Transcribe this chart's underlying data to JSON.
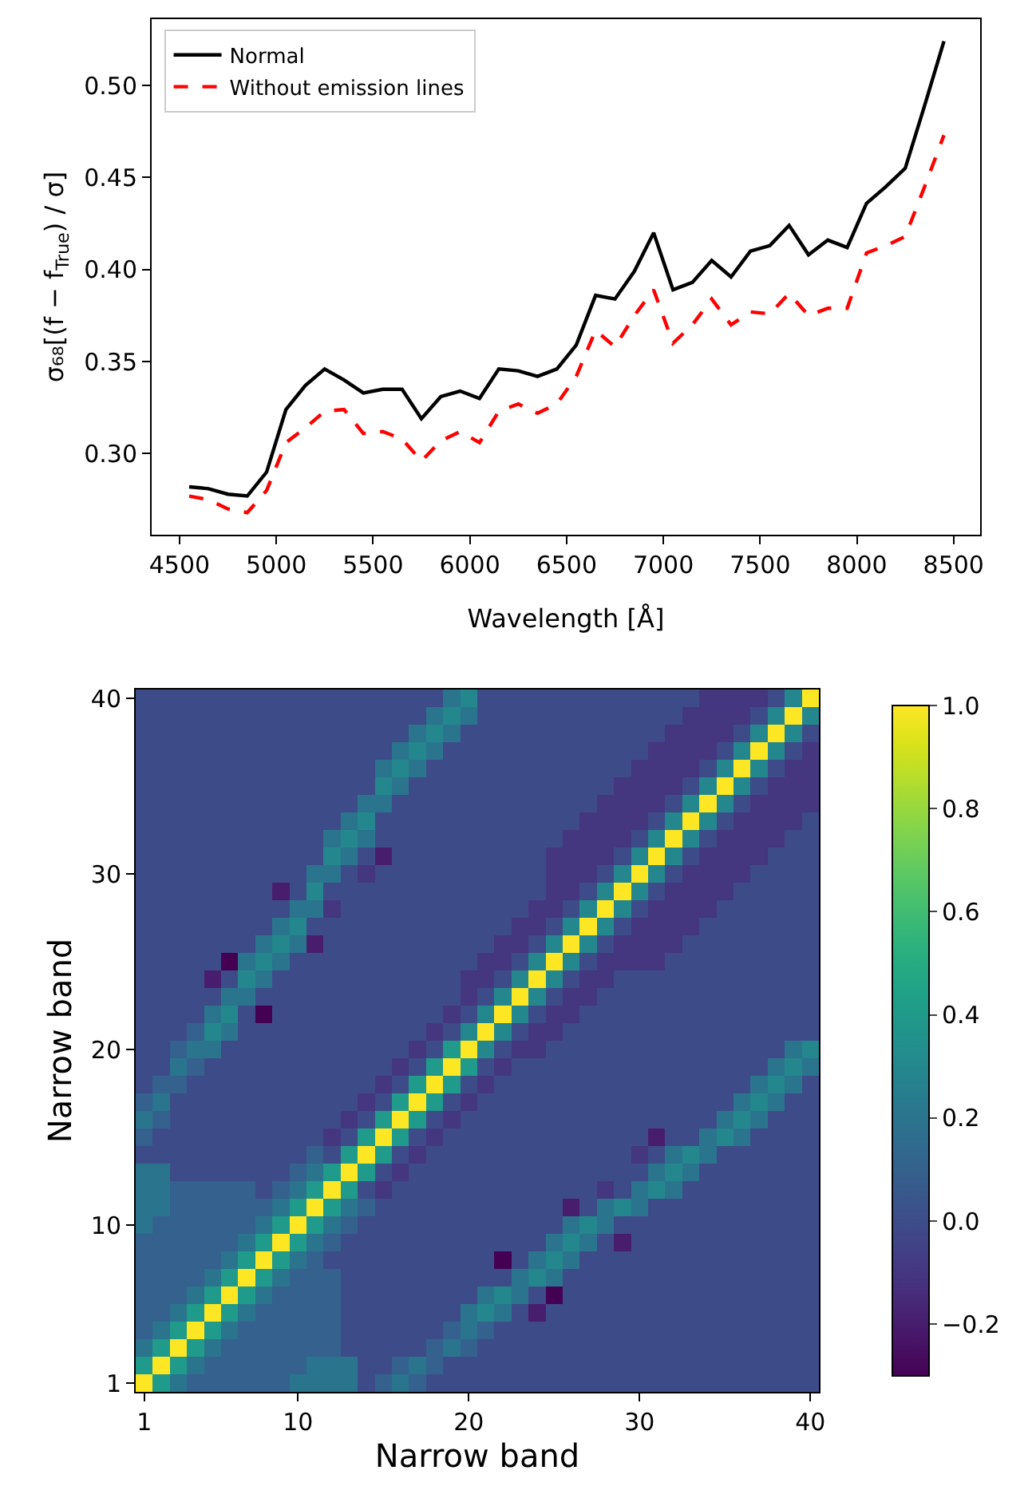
{
  "chart_data": [
    {
      "type": "line",
      "xlabel": "Wavelength [Å]",
      "ylabel": "σ₆₈[(f − f$_{True}$) / σ]",
      "x": [
        4550,
        4650,
        4750,
        4850,
        4950,
        5050,
        5150,
        5250,
        5350,
        5450,
        5550,
        5650,
        5750,
        5850,
        5950,
        6050,
        6150,
        6250,
        6350,
        6450,
        6550,
        6650,
        6750,
        6850,
        6950,
        7050,
        7150,
        7250,
        7350,
        7450,
        7550,
        7650,
        7750,
        7850,
        7950,
        8050,
        8150,
        8250,
        8350,
        8450
      ],
      "series": [
        {
          "name": "Normal",
          "color": "#000000",
          "line_style": "solid",
          "values": [
            0.282,
            0.281,
            0.278,
            0.277,
            0.29,
            0.324,
            0.337,
            0.346,
            0.34,
            0.333,
            0.335,
            0.335,
            0.319,
            0.331,
            0.334,
            0.33,
            0.346,
            0.345,
            0.342,
            0.346,
            0.359,
            0.386,
            0.384,
            0.399,
            0.42,
            0.389,
            0.393,
            0.405,
            0.396,
            0.41,
            0.413,
            0.424,
            0.408,
            0.416,
            0.412,
            0.436,
            0.445,
            0.455,
            0.489,
            0.524
          ]
        },
        {
          "name": "Without emission lines",
          "color": "#ff0000",
          "line_style": "dashed",
          "values": [
            0.277,
            0.275,
            0.27,
            0.268,
            0.28,
            0.306,
            0.314,
            0.323,
            0.324,
            0.311,
            0.312,
            0.308,
            0.296,
            0.307,
            0.312,
            0.306,
            0.323,
            0.327,
            0.322,
            0.327,
            0.342,
            0.367,
            0.358,
            0.375,
            0.389,
            0.36,
            0.37,
            0.384,
            0.37,
            0.377,
            0.376,
            0.387,
            0.375,
            0.379,
            0.379,
            0.409,
            0.413,
            0.418,
            0.445,
            0.473
          ]
        }
      ],
      "xlim": [
        4356,
        8637
      ],
      "xticks": [
        4500,
        5000,
        5500,
        6000,
        6500,
        7000,
        7500,
        8000,
        8500
      ],
      "ylim": [
        0.256,
        0.536
      ],
      "yticks": [
        {
          "value": 0.3,
          "label": "0.30"
        },
        {
          "value": 0.35,
          "label": "0.35"
        },
        {
          "value": 0.4,
          "label": "0.40"
        },
        {
          "value": 0.45,
          "label": "0.45"
        },
        {
          "value": 0.5,
          "label": "0.50"
        }
      ],
      "legend": "top left"
    },
    {
      "type": "heatmap",
      "xlabel": "Narrow band",
      "ylabel": "Narrow band",
      "categories": [
        "1",
        null,
        null,
        null,
        null,
        null,
        null,
        null,
        null,
        "10",
        null,
        null,
        null,
        null,
        null,
        null,
        null,
        null,
        null,
        "20",
        null,
        null,
        null,
        null,
        null,
        null,
        null,
        null,
        null,
        "30",
        null,
        null,
        null,
        null,
        null,
        null,
        null,
        null,
        null,
        "40"
      ],
      "y_categories": [
        "40",
        null,
        null,
        null,
        null,
        null,
        null,
        null,
        null,
        null,
        "30",
        null,
        null,
        null,
        null,
        null,
        null,
        null,
        null,
        null,
        "20",
        null,
        null,
        null,
        null,
        null,
        null,
        null,
        null,
        null,
        "10",
        null,
        null,
        null,
        null,
        null,
        null,
        null,
        null,
        "1"
      ],
      "clim": [
        -0.3,
        1.0
      ],
      "cticks": [
        {
          "value": -0.2,
          "label": "−0.2"
        },
        {
          "value": 0,
          "label": "0.0"
        },
        {
          "value": 0.2,
          "label": "0.2"
        },
        {
          "value": 0.4,
          "label": "0.4"
        },
        {
          "value": 0.6,
          "label": "0.6"
        },
        {
          "value": 0.8,
          "label": "0.8"
        },
        {
          "value": 1.0,
          "label": "1.0"
        }
      ],
      "cells": [
        [
          0,
          0,
          0,
          0,
          0,
          0,
          0,
          0,
          0,
          0,
          0,
          0,
          0,
          0,
          0,
          0,
          0,
          0,
          0.2,
          0.3,
          0,
          0,
          0,
          0,
          0,
          0,
          0,
          0,
          0,
          0,
          0,
          0,
          0,
          -0.1,
          -0.1,
          -0.1,
          -0.1,
          0,
          0.3,
          1
        ],
        [
          0,
          0,
          0,
          0,
          0,
          0,
          0,
          0,
          0,
          0,
          0,
          0,
          0,
          0,
          0,
          0,
          0,
          0.2,
          0.3,
          0.2,
          0,
          0,
          0,
          0,
          0,
          0,
          0,
          0,
          0,
          0,
          0,
          0,
          -0.1,
          -0.1,
          -0.1,
          -0.1,
          0,
          0.3,
          1,
          0.3
        ],
        [
          0,
          0,
          0,
          0,
          0,
          0,
          0,
          0,
          0,
          0,
          0,
          0,
          0,
          0,
          0,
          0,
          0.2,
          0.3,
          0.2,
          0,
          0,
          0,
          0,
          0,
          0,
          0,
          0,
          0,
          0,
          0,
          0,
          -0.1,
          -0.1,
          -0.1,
          -0.1,
          0,
          0.3,
          1,
          0.3,
          0
        ],
        [
          0,
          0,
          0,
          0,
          0,
          0,
          0,
          0,
          0,
          0,
          0,
          0,
          0,
          0,
          0,
          0.2,
          0.3,
          0.2,
          0,
          0,
          0,
          0,
          0,
          0,
          0,
          0,
          0,
          0,
          0,
          0,
          -0.1,
          -0.1,
          -0.1,
          -0.1,
          0,
          0.3,
          1,
          0.3,
          0,
          -0.1
        ],
        [
          0,
          0,
          0,
          0,
          0,
          0,
          0,
          0,
          0,
          0,
          0,
          0,
          0,
          0,
          0.2,
          0.3,
          0.2,
          0,
          0,
          0,
          0,
          0,
          0,
          0,
          0,
          0,
          0,
          0,
          0,
          -0.1,
          -0.1,
          -0.1,
          -0.1,
          0,
          0.3,
          1,
          0.3,
          0,
          -0.1,
          -0.1
        ],
        [
          0,
          0,
          0,
          0,
          0,
          0,
          0,
          0,
          0,
          0,
          0,
          0,
          0,
          0,
          0.3,
          0.2,
          0,
          0,
          0,
          0,
          0,
          0,
          0,
          0,
          0,
          0,
          0,
          0,
          -0.1,
          -0.1,
          -0.1,
          -0.1,
          0,
          0.3,
          1,
          0.3,
          0,
          -0.1,
          -0.1,
          -0.1
        ],
        [
          0,
          0,
          0,
          0,
          0,
          0,
          0,
          0,
          0,
          0,
          0,
          0,
          0,
          0.2,
          0.2,
          0,
          0,
          0,
          0,
          0,
          0,
          0,
          0,
          0,
          0,
          0,
          0,
          -0.1,
          -0.1,
          -0.1,
          -0.1,
          0,
          0.3,
          1,
          0.3,
          0,
          -0.1,
          -0.1,
          -0.1,
          -0.1
        ],
        [
          0,
          0,
          0,
          0,
          0,
          0,
          0,
          0,
          0,
          0,
          0,
          0,
          0.2,
          0.3,
          0,
          0,
          0,
          0,
          0,
          0,
          0,
          0,
          0,
          0,
          0,
          0,
          -0.1,
          -0.1,
          -0.1,
          -0.1,
          0,
          0.3,
          1,
          0.3,
          0,
          -0.1,
          -0.1,
          -0.1,
          -0.1,
          0
        ],
        [
          0,
          0,
          0,
          0,
          0,
          0,
          0,
          0,
          0,
          0,
          0,
          0.2,
          0.3,
          0.2,
          0,
          0,
          0,
          0,
          0,
          0,
          0,
          0,
          0,
          0,
          0,
          -0.1,
          -0.1,
          -0.1,
          -0.1,
          0,
          0.3,
          1,
          0.3,
          0,
          -0.1,
          -0.1,
          -0.1,
          -0.1,
          0,
          0
        ],
        [
          0,
          0,
          0,
          0,
          0,
          0,
          0,
          0,
          0,
          0,
          0,
          0.3,
          0.2,
          0,
          -0.2,
          0,
          0,
          0,
          0,
          0,
          0,
          0,
          0,
          0,
          -0.1,
          -0.1,
          -0.1,
          -0.1,
          0,
          0.3,
          1,
          0.3,
          0,
          -0.1,
          -0.1,
          -0.1,
          -0.1,
          0,
          0,
          0
        ],
        [
          0,
          0,
          0,
          0,
          0,
          0,
          0,
          0,
          0,
          0,
          0.2,
          0.2,
          0,
          -0.1,
          0,
          0,
          0,
          0,
          0,
          0,
          0,
          0,
          0,
          0,
          -0.1,
          -0.1,
          -0.1,
          0,
          0.3,
          1,
          0.3,
          0,
          -0.1,
          -0.1,
          -0.1,
          -0.1,
          0,
          0,
          0,
          0
        ],
        [
          0,
          0,
          0,
          0,
          0,
          0,
          0,
          0,
          -0.2,
          0,
          0.3,
          0,
          0,
          0,
          0,
          0,
          0,
          0,
          0,
          0,
          0,
          0,
          0,
          0,
          -0.1,
          -0.1,
          0,
          0.3,
          1,
          0.3,
          0,
          -0.1,
          -0.1,
          -0.1,
          -0.1,
          0,
          0,
          0,
          0,
          0
        ],
        [
          0,
          0,
          0,
          0,
          0,
          0,
          0,
          0,
          0,
          0.2,
          0.2,
          -0.1,
          0,
          0,
          0,
          0,
          0,
          0,
          0,
          0,
          0,
          0,
          0,
          -0.1,
          -0.1,
          0,
          0.3,
          1,
          0.3,
          0,
          -0.1,
          -0.1,
          -0.1,
          -0.1,
          0,
          0,
          0,
          0,
          0,
          0
        ],
        [
          0,
          0,
          0,
          0,
          0,
          0,
          0,
          0,
          0.2,
          0.3,
          0,
          0,
          0,
          0,
          0,
          0,
          0,
          0,
          0,
          0,
          0,
          0,
          -0.1,
          -0.1,
          0,
          0.3,
          1,
          0.3,
          0,
          -0.1,
          -0.1,
          -0.1,
          -0.1,
          0,
          0,
          0,
          0,
          0,
          0,
          0
        ],
        [
          0,
          0,
          0,
          0,
          0,
          0,
          0,
          0.2,
          0.3,
          0.2,
          -0.2,
          0,
          0,
          0,
          0,
          0,
          0,
          0,
          0,
          0,
          0,
          -0.1,
          -0.1,
          0,
          0.3,
          1,
          0.3,
          0,
          -0.1,
          -0.1,
          -0.1,
          -0.1,
          0,
          0,
          0,
          0,
          0,
          0,
          0,
          0
        ],
        [
          0,
          0,
          0,
          0,
          0,
          -0.3,
          0.2,
          0.3,
          0.2,
          0,
          0,
          0,
          0,
          0,
          0,
          0,
          0,
          0,
          0,
          0,
          -0.1,
          -0.1,
          0,
          0.3,
          1,
          0.3,
          0,
          -0.1,
          -0.1,
          -0.1,
          -0.1,
          0,
          0,
          0,
          0,
          0,
          0,
          0,
          0,
          0
        ],
        [
          0,
          0,
          0,
          0,
          -0.2,
          0,
          0.3,
          0.2,
          0,
          0,
          0,
          0,
          0,
          0,
          0,
          0,
          0,
          0,
          0,
          -0.1,
          -0.1,
          0,
          0.3,
          1,
          0.3,
          0,
          -0.1,
          -0.1,
          0,
          0,
          0,
          0,
          0,
          0,
          0,
          0,
          0,
          0,
          0,
          0
        ],
        [
          0,
          0,
          0,
          0,
          0,
          0.2,
          0.2,
          0,
          0,
          0,
          0,
          0,
          0,
          0,
          0,
          0,
          0,
          0,
          0,
          -0.1,
          0,
          0.3,
          1,
          0.3,
          0,
          -0.1,
          -0.1,
          0,
          0,
          0,
          0,
          0,
          0,
          0,
          0,
          0,
          0,
          0,
          0,
          0
        ],
        [
          0,
          0,
          0,
          0,
          0.2,
          0.3,
          0,
          -0.3,
          0,
          0,
          0,
          0,
          0,
          0,
          0,
          0,
          0,
          0,
          -0.1,
          0,
          0.3,
          1,
          0.3,
          0,
          -0.1,
          -0.1,
          0,
          0,
          0,
          0,
          0,
          0,
          0,
          0,
          0,
          0,
          0,
          0,
          0,
          0
        ],
        [
          0,
          0,
          0,
          0.1,
          0.3,
          0.2,
          0,
          0,
          0,
          0,
          0,
          0,
          0,
          0,
          0,
          0,
          0,
          -0.1,
          0,
          0.3,
          1,
          0.3,
          0,
          -0.1,
          -0.1,
          0,
          0,
          0,
          0,
          0,
          0,
          0,
          0,
          0,
          0,
          0,
          0,
          0,
          0,
          0
        ],
        [
          0,
          0,
          0.1,
          0.2,
          0.2,
          0,
          0,
          0,
          0,
          0,
          0,
          0,
          0,
          0,
          0,
          0,
          -0.1,
          0,
          0.4,
          1,
          0.3,
          0,
          -0.1,
          -0.1,
          0,
          0,
          0,
          0,
          0,
          0,
          0,
          0,
          0,
          0,
          0,
          0,
          0,
          0,
          0.2,
          0.3
        ],
        [
          0,
          0,
          0.2,
          0.1,
          0,
          0,
          0,
          0,
          0,
          0,
          0,
          0,
          0,
          0,
          0,
          -0.1,
          0,
          0.4,
          1,
          0.4,
          0,
          -0.1,
          0,
          0,
          0,
          0,
          0,
          0,
          0,
          0,
          0,
          0,
          0,
          0,
          0,
          0,
          0,
          0.2,
          0.3,
          0.2
        ],
        [
          0,
          0.1,
          0.1,
          0,
          0,
          0,
          0,
          0,
          0,
          0,
          0,
          0,
          0,
          0,
          -0.1,
          0,
          0.4,
          1,
          0.4,
          0,
          -0.1,
          0,
          0,
          0,
          0,
          0,
          0,
          0,
          0,
          0,
          0,
          0,
          0,
          0,
          0,
          0,
          0.2,
          0.3,
          0.2,
          0
        ],
        [
          0.1,
          0.2,
          0,
          0,
          0,
          0,
          0,
          0,
          0,
          0,
          0,
          0,
          0,
          -0.1,
          0,
          0.4,
          1,
          0.4,
          0,
          -0.1,
          0,
          0,
          0,
          0,
          0,
          0,
          0,
          0,
          0,
          0,
          0,
          0,
          0,
          0,
          0,
          0.2,
          0.3,
          0.2,
          0,
          0
        ],
        [
          0.2,
          0.1,
          0,
          0,
          0,
          0,
          0,
          0,
          0,
          0,
          0,
          0,
          -0.1,
          0,
          0.4,
          1,
          0.4,
          0,
          -0.1,
          0,
          0,
          0,
          0,
          0,
          0,
          0,
          0,
          0,
          0,
          0,
          0,
          0,
          0,
          0,
          0.2,
          0.3,
          0.2,
          0,
          0,
          0
        ],
        [
          0.1,
          0,
          0,
          0,
          0,
          0,
          0,
          0,
          0,
          0,
          0,
          -0.1,
          0,
          0.4,
          1,
          0.4,
          0,
          -0.1,
          0,
          0,
          0,
          0,
          0,
          0,
          0,
          0,
          0,
          0,
          0,
          0,
          -0.2,
          0,
          0,
          0.2,
          0.3,
          0.2,
          0,
          0,
          0,
          0
        ],
        [
          0,
          0,
          0,
          0,
          0,
          0,
          0,
          0,
          0,
          0,
          0.1,
          0,
          0.4,
          1,
          0.4,
          0,
          -0.1,
          0,
          0,
          0,
          0,
          0,
          0,
          0,
          0,
          0,
          0,
          0,
          0,
          -0.1,
          0,
          0.2,
          0.3,
          0.2,
          0,
          0,
          0,
          0,
          0,
          0
        ],
        [
          0.2,
          0.2,
          0,
          0,
          0,
          0,
          0,
          0,
          0,
          0.1,
          0.2,
          0.4,
          1,
          0.4,
          0,
          -0.1,
          0,
          0,
          0,
          0,
          0,
          0,
          0,
          0,
          0,
          0,
          0,
          0,
          0,
          0,
          0.2,
          0.3,
          0.2,
          0,
          0,
          0,
          0,
          0,
          0,
          0
        ],
        [
          0.2,
          0.2,
          0.1,
          0.1,
          0.1,
          0.1,
          0.1,
          0,
          0.1,
          0.2,
          0.4,
          1,
          0.4,
          0,
          -0.1,
          0,
          0,
          0,
          0,
          0,
          0,
          0,
          0,
          0,
          0,
          0,
          0,
          -0.1,
          0,
          0.2,
          0.3,
          0.2,
          0,
          0,
          0,
          0,
          0,
          0,
          0,
          0
        ],
        [
          0.2,
          0.2,
          0.1,
          0.1,
          0.1,
          0.1,
          0.1,
          0.1,
          0.2,
          0.4,
          1,
          0.4,
          0.2,
          0.1,
          0,
          0,
          0,
          0,
          0,
          0,
          0,
          0,
          0,
          0,
          0,
          -0.2,
          0,
          0.2,
          0.3,
          0.2,
          0,
          0,
          0,
          0,
          0,
          0,
          0,
          0,
          0,
          0
        ],
        [
          0.2,
          0.1,
          0.1,
          0.1,
          0.1,
          0.1,
          0.1,
          0.2,
          0.4,
          1,
          0.4,
          0.2,
          0.1,
          0,
          0,
          0,
          0,
          0,
          0,
          0,
          0,
          0,
          0,
          0,
          0,
          0.2,
          0.3,
          0.2,
          0,
          0,
          0,
          0,
          0,
          0,
          0,
          0,
          0,
          0,
          0,
          0
        ],
        [
          0.1,
          0.1,
          0.1,
          0.1,
          0.1,
          0.1,
          0.2,
          0.4,
          1,
          0.4,
          0.2,
          0.1,
          0,
          0,
          0,
          0,
          0,
          0,
          0,
          0,
          0,
          0,
          0,
          0,
          0.2,
          0.3,
          0.2,
          0,
          -0.2,
          0,
          0,
          0,
          0,
          0,
          0,
          0,
          0,
          0,
          0,
          0
        ],
        [
          0.1,
          0.1,
          0.1,
          0.1,
          0.1,
          0.2,
          0.4,
          1,
          0.4,
          0.2,
          0.1,
          0,
          0,
          0,
          0,
          0,
          0,
          0,
          0,
          0,
          0,
          -0.3,
          0,
          0.2,
          0.3,
          0.2,
          0,
          0,
          0,
          0,
          0,
          0,
          0,
          0,
          0,
          0,
          0,
          0,
          0,
          0
        ],
        [
          0.1,
          0.1,
          0.1,
          0.1,
          0.2,
          0.4,
          1,
          0.4,
          0.2,
          0.1,
          0.1,
          0.1,
          0,
          0,
          0,
          0,
          0,
          0,
          0,
          0,
          0,
          0,
          0.2,
          0.3,
          0.2,
          0,
          0,
          0,
          0,
          0,
          0,
          0,
          0,
          0,
          0,
          0,
          0,
          0,
          0,
          0
        ],
        [
          0.1,
          0.1,
          0.1,
          0.2,
          0.4,
          1,
          0.4,
          0.2,
          0.1,
          0.1,
          0.1,
          0.1,
          0,
          0,
          0,
          0,
          0,
          0,
          0,
          0,
          0.2,
          0.3,
          0.2,
          0,
          -0.3,
          0,
          0,
          0,
          0,
          0,
          0,
          0,
          0,
          0,
          0,
          0,
          0,
          0,
          0,
          0
        ],
        [
          0.1,
          0.1,
          0.2,
          0.4,
          1,
          0.4,
          0.2,
          0.1,
          0.1,
          0.1,
          0.1,
          0.1,
          0,
          0,
          0,
          0,
          0,
          0,
          0,
          0.2,
          0.3,
          0.2,
          0,
          -0.2,
          0,
          0,
          0,
          0,
          0,
          0,
          0,
          0,
          0,
          0,
          0,
          0,
          0,
          0,
          0,
          0
        ],
        [
          0.1,
          0.2,
          0.4,
          1,
          0.4,
          0.2,
          0.1,
          0.1,
          0.1,
          0.1,
          0.1,
          0.1,
          0,
          0,
          0,
          0,
          0,
          0,
          0.1,
          0.2,
          0.1,
          0,
          0,
          0,
          0,
          0,
          0,
          0,
          0,
          0,
          0,
          0,
          0,
          0,
          0,
          0,
          0,
          0,
          0,
          0
        ],
        [
          0.2,
          0.4,
          1,
          0.4,
          0.2,
          0.1,
          0.1,
          0.1,
          0.1,
          0.1,
          0.1,
          0.1,
          0,
          0,
          0,
          0,
          0,
          0.1,
          0.2,
          0.1,
          0,
          0,
          0,
          0,
          0,
          0,
          0,
          0,
          0,
          0,
          0,
          0,
          0,
          0,
          0,
          0,
          0,
          0,
          0,
          0
        ],
        [
          0.4,
          1,
          0.4,
          0.2,
          0.1,
          0.1,
          0.1,
          0.1,
          0.1,
          0.1,
          0.2,
          0.2,
          0.2,
          0,
          0,
          0.1,
          0.2,
          0.1,
          0,
          0,
          0,
          0,
          0,
          0,
          0,
          0,
          0,
          0,
          0,
          0,
          0,
          0,
          0,
          0,
          0,
          0,
          0,
          0,
          0,
          0
        ],
        [
          1,
          0.4,
          0.2,
          0.1,
          0.1,
          0.1,
          0.1,
          0.1,
          0.1,
          0.2,
          0.2,
          0.2,
          0.2,
          0,
          0.1,
          0.2,
          0.1,
          0,
          0,
          0,
          0,
          0,
          0,
          0,
          0,
          0,
          0,
          0,
          0,
          0,
          0,
          0,
          0,
          0,
          0,
          0,
          0,
          0,
          0,
          0
        ]
      ]
    }
  ]
}
